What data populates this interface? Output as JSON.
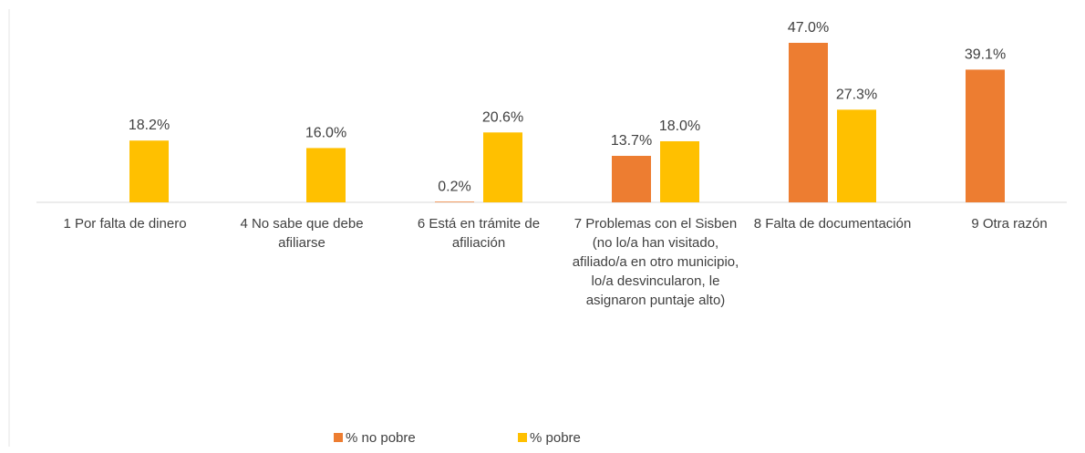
{
  "chart_data": {
    "type": "bar",
    "categories": [
      "1 Por falta de dinero",
      "4 No sabe que debe afiliarse",
      "6 Está en trámite de afiliación",
      "7 Problemas con el Sisben (no lo/a han visitado, afiliado/a en otro municipio, lo/a desvincularon, le asignaron puntaje alto)",
      "8 Falta de documentación",
      "9 Otra razón"
    ],
    "series": [
      {
        "name": "% no pobre",
        "color": "#ED7D31",
        "values": [
          null,
          null,
          0.2,
          13.7,
          47.0,
          39.1
        ],
        "value_labels": [
          null,
          null,
          "0.2%",
          "13.7%",
          "47.0%",
          "39.1%"
        ]
      },
      {
        "name": "% pobre",
        "color": "#FFC000",
        "values": [
          18.2,
          16.0,
          20.6,
          18.0,
          27.3,
          null
        ],
        "value_labels": [
          "18.2%",
          "16.0%",
          "20.6%",
          "18.0%",
          "27.3%",
          null
        ]
      }
    ],
    "legend": "bottom"
  }
}
